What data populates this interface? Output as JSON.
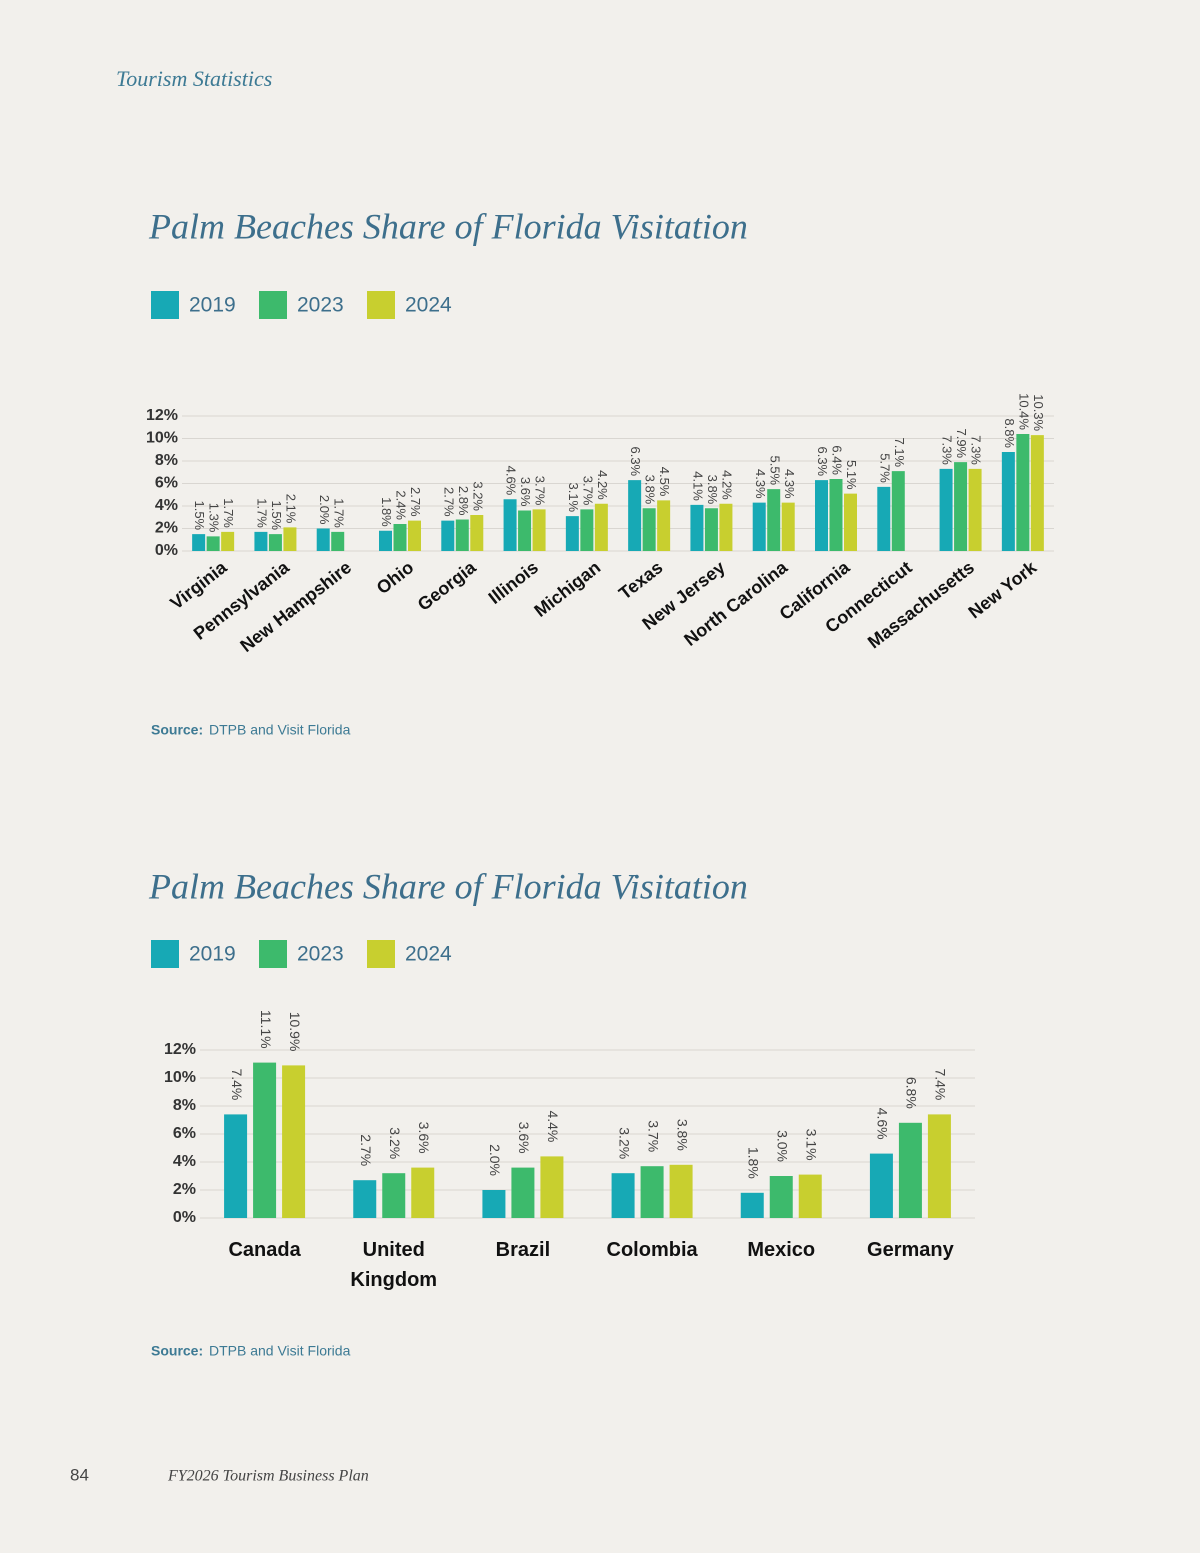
{
  "header": {
    "section": "Tourism Statistics"
  },
  "chart_data": [
    {
      "type": "bar",
      "title": "Palm Beaches Share of Florida Visitation",
      "categories": [
        "Virginia",
        "Pennsylvania",
        "New Hampshire",
        "Ohio",
        "Georgia",
        "Illinois",
        "Michigan",
        "Texas",
        "New Jersey",
        "North Carolina",
        "California",
        "Connecticut",
        "Massachusetts",
        "New York"
      ],
      "series": [
        {
          "name": "2019",
          "color": "#17a9b5",
          "values": [
            1.5,
            1.7,
            2.0,
            1.8,
            2.7,
            4.6,
            3.1,
            6.3,
            4.1,
            4.3,
            6.3,
            5.7,
            7.3,
            8.8
          ],
          "value_labels": [
            "1.5%",
            "1.7%",
            "2.0%",
            "1.8%",
            "2.7%",
            "4.6%",
            "3.1%",
            "6.3%",
            "4.1%",
            "4.3%",
            "6.3%",
            "5.7%",
            "7.3%",
            "8.8%"
          ]
        },
        {
          "name": "2023",
          "color": "#3dba6c",
          "values": [
            1.3,
            1.5,
            1.7,
            2.4,
            2.8,
            3.6,
            3.7,
            3.8,
            3.8,
            5.5,
            6.4,
            7.1,
            7.9,
            10.4
          ],
          "value_labels": [
            "1.3%",
            "1.5%",
            "1.7%",
            "2.4%",
            "2.8%",
            "3.6%",
            "3.7%",
            "3.8%",
            "3.8%",
            "5.5%",
            "6.4%",
            "7.1%",
            "7.9%",
            "10.4%"
          ]
        },
        {
          "name": "2024",
          "color": "#c8cf2f",
          "values": [
            1.7,
            2.1,
            null,
            2.7,
            3.2,
            3.7,
            4.2,
            4.5,
            4.2,
            4.3,
            5.1,
            null,
            7.3,
            10.3
          ],
          "value_labels": [
            "1.7%",
            "2.1%",
            null,
            "2.7%",
            "3.2%",
            "3.7%",
            "4.2%",
            "4.5%",
            "4.2%",
            "4.3%",
            "5.1%",
            null,
            "7.3%",
            "10.3%"
          ]
        }
      ],
      "ylim": [
        0,
        12
      ],
      "yticks": [
        {
          "value": 0,
          "label": "0%"
        },
        {
          "value": 2,
          "label": "2%"
        },
        {
          "value": 4,
          "label": "4%"
        },
        {
          "value": 6,
          "label": "6%"
        },
        {
          "value": 8,
          "label": "8%"
        },
        {
          "value": 10,
          "label": "10%"
        },
        {
          "value": 12,
          "label": "12%"
        }
      ],
      "grid": true,
      "source_label": "Source:",
      "source": "DTPB and Visit Florida"
    },
    {
      "type": "bar",
      "title": "Palm Beaches Share of Florida Visitation",
      "categories": [
        "Canada",
        "United Kingdom",
        "Brazil",
        "Colombia",
        "Mexico",
        "Germany"
      ],
      "series": [
        {
          "name": "2019",
          "color": "#17a9b5",
          "values": [
            7.4,
            2.7,
            2.0,
            3.2,
            1.8,
            4.6
          ],
          "value_labels": [
            "7.4%",
            "2.7%",
            "2.0%",
            "3.2%",
            "1.8%",
            "4.6%"
          ]
        },
        {
          "name": "2023",
          "color": "#3dba6c",
          "values": [
            11.1,
            3.2,
            3.6,
            3.7,
            3.0,
            6.8
          ],
          "value_labels": [
            "11.1%",
            "3.2%",
            "3.6%",
            "3.7%",
            "3.0%",
            "6.8%"
          ]
        },
        {
          "name": "2024",
          "color": "#c8cf2f",
          "values": [
            10.9,
            3.6,
            4.4,
            3.8,
            3.1,
            7.4
          ],
          "value_labels": [
            "10.9%",
            "3.6%",
            "4.4%",
            "3.8%",
            "3.1%",
            "7.4%"
          ]
        }
      ],
      "ylim": [
        0,
        12
      ],
      "yticks": [
        {
          "value": 0,
          "label": "0%"
        },
        {
          "value": 2,
          "label": "2%"
        },
        {
          "value": 4,
          "label": "4%"
        },
        {
          "value": 6,
          "label": "6%"
        },
        {
          "value": 8,
          "label": "8%"
        },
        {
          "value": 10,
          "label": "10%"
        },
        {
          "value": 12,
          "label": "12%"
        }
      ],
      "grid": true,
      "source_label": "Source:",
      "source": "DTPB and Visit Florida"
    }
  ],
  "footer": {
    "page_number": 84,
    "title": "FY2026 Tourism Business Plan"
  }
}
